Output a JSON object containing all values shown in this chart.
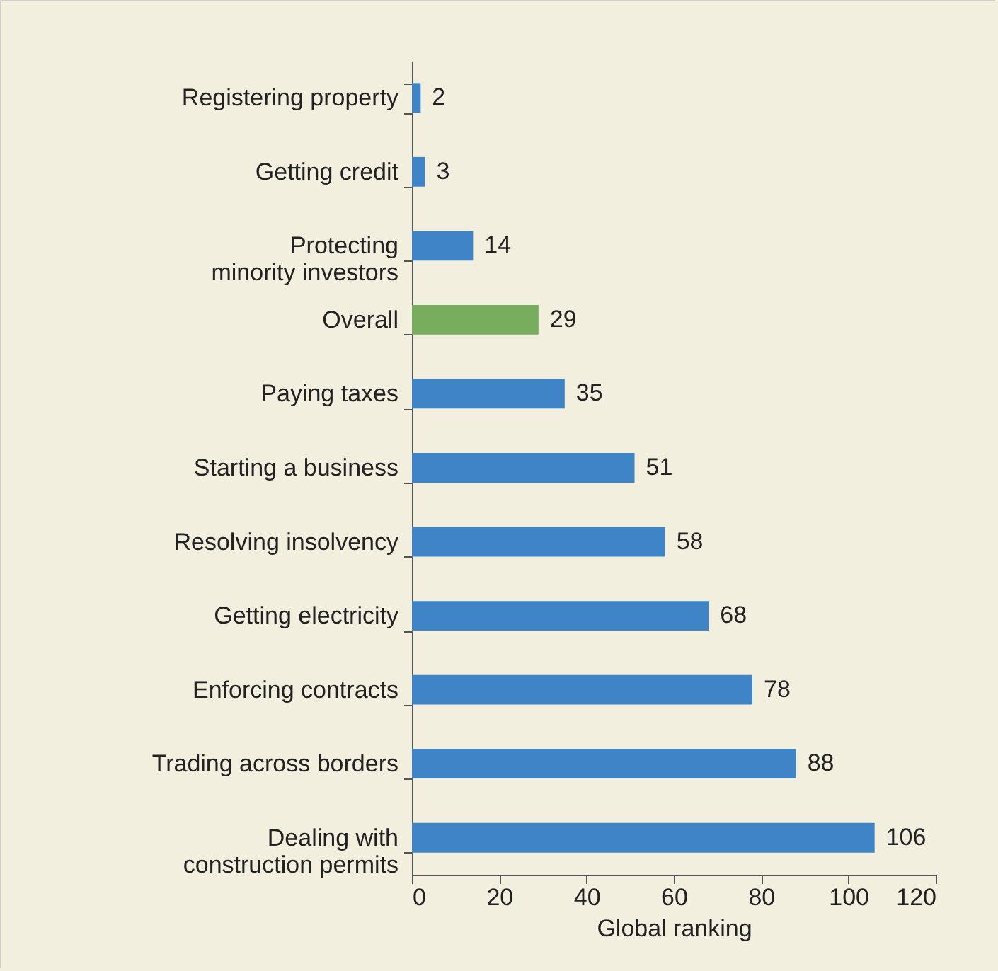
{
  "chart_data": {
    "type": "bar",
    "orientation": "horizontal",
    "xlabel": "Global ranking",
    "categories": [
      "Registering property",
      "Getting credit",
      "Protecting minority investors",
      "Overall",
      "Paying taxes",
      "Starting a business",
      "Resolving insolvency",
      "Getting electricity",
      "Enforcing contracts",
      "Trading across borders",
      "Dealing with construction permits"
    ],
    "values": [
      2,
      3,
      14,
      29,
      35,
      51,
      58,
      68,
      78,
      88,
      106
    ],
    "colors": [
      "#3f84c6",
      "#3f84c6",
      "#3f84c6",
      "#79ad5e",
      "#3f84c6",
      "#3f84c6",
      "#3f84c6",
      "#3f84c6",
      "#3f84c6",
      "#3f84c6",
      "#3f84c6"
    ],
    "xlim": [
      0,
      120
    ],
    "xticks": [
      0,
      20,
      40,
      60,
      80,
      100,
      120
    ],
    "data_labels": true
  }
}
